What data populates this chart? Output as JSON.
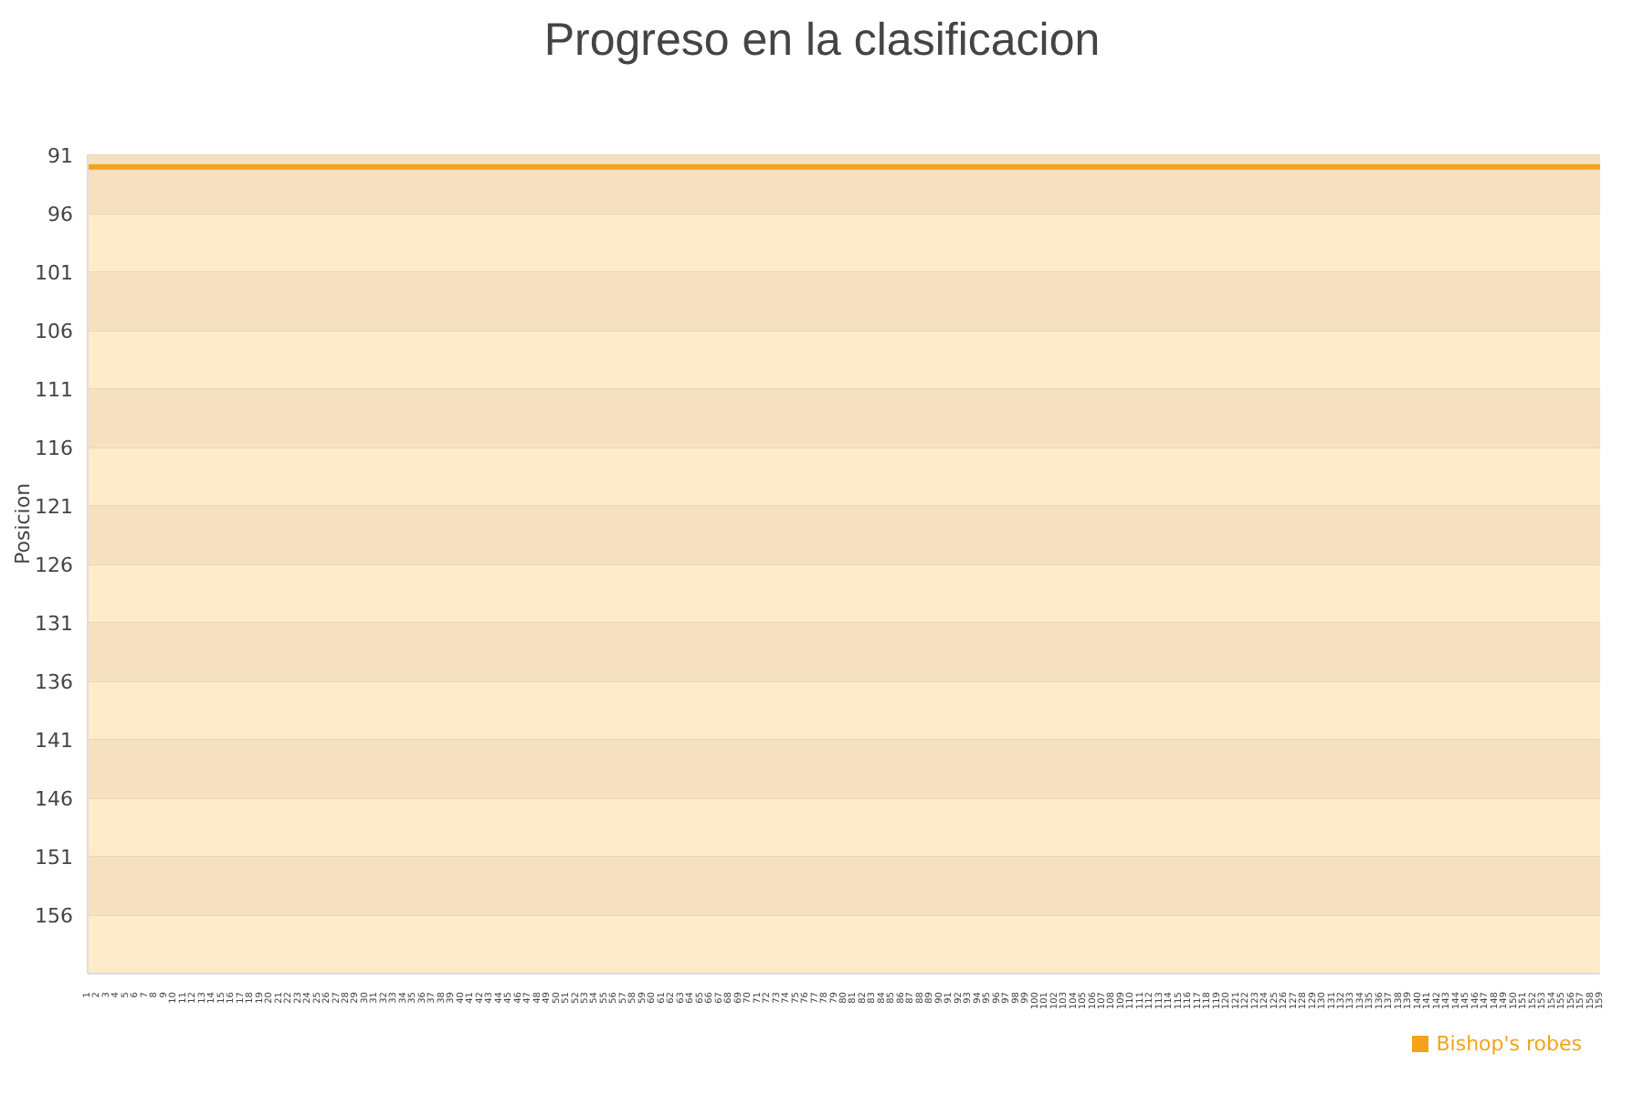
{
  "chart_data": {
    "type": "line",
    "title": "Progreso en la clasificacion",
    "ylabel": "Posicion",
    "categories": [
      "1",
      "2",
      "3",
      "4",
      "5",
      "6",
      "7",
      "8",
      "9",
      "10",
      "11",
      "12",
      "13",
      "14",
      "15",
      "16",
      "17",
      "18",
      "19",
      "20",
      "21",
      "22",
      "23",
      "24",
      "25",
      "26",
      "27",
      "28",
      "29",
      "30",
      "31",
      "32",
      "33",
      "34",
      "35",
      "36",
      "37",
      "38",
      "39",
      "40",
      "41",
      "42",
      "43",
      "44",
      "45",
      "46",
      "47",
      "48",
      "49",
      "50",
      "51",
      "52",
      "53",
      "54",
      "55",
      "56",
      "57",
      "58",
      "59",
      "60",
      "61",
      "62",
      "63",
      "64",
      "65",
      "66",
      "67",
      "68",
      "69",
      "70",
      "71",
      "72",
      "73",
      "74",
      "75",
      "76",
      "77",
      "78",
      "79",
      "80",
      "81",
      "82",
      "83",
      "84",
      "85",
      "86",
      "87",
      "88",
      "89",
      "90",
      "91",
      "92",
      "93",
      "94",
      "95",
      "96",
      "97",
      "98",
      "99",
      "100",
      "101",
      "102",
      "103",
      "104",
      "105",
      "106",
      "107",
      "108",
      "109",
      "110",
      "111",
      "112",
      "113",
      "114",
      "115",
      "116",
      "117",
      "118",
      "119",
      "120",
      "121",
      "122",
      "123",
      "124",
      "125",
      "126",
      "127",
      "128",
      "129",
      "130",
      "131",
      "132",
      "133",
      "134",
      "135",
      "136",
      "137",
      "138",
      "139",
      "140",
      "141",
      "142",
      "143",
      "144",
      "145",
      "146",
      "147",
      "148",
      "149",
      "150",
      "151",
      "152",
      "153",
      "154",
      "155",
      "156",
      "157",
      "158",
      "159"
    ],
    "series": [
      {
        "name": "Bishop's robes",
        "color": "#f5a31a",
        "values": [
          92,
          92,
          92,
          92,
          92,
          92,
          92,
          92,
          92,
          92,
          92,
          92,
          92,
          92,
          92,
          92,
          92,
          92,
          92,
          92,
          92,
          92,
          92,
          92,
          92,
          92,
          92,
          92,
          92,
          92,
          92,
          92,
          92,
          92,
          92,
          92,
          92,
          92,
          92,
          92,
          92,
          92,
          92,
          92,
          92,
          92,
          92,
          92,
          92,
          92,
          92,
          92,
          92,
          92,
          92,
          92,
          92,
          92,
          92,
          92,
          92,
          92,
          92,
          92,
          92,
          92,
          92,
          92,
          92,
          92,
          92,
          92,
          92,
          92,
          92,
          92,
          92,
          92,
          92,
          92,
          92,
          92,
          92,
          92,
          92,
          92,
          92,
          92,
          92,
          92,
          92,
          92,
          92,
          92,
          92,
          92,
          92,
          92,
          92,
          92,
          92,
          92,
          92,
          92,
          92,
          92,
          92,
          92,
          92,
          92,
          92,
          92,
          92,
          92,
          92,
          92,
          92,
          92,
          92,
          92,
          92,
          92,
          92,
          92,
          92,
          92,
          92,
          92,
          92,
          92,
          92,
          92,
          92,
          92,
          92,
          92,
          92,
          92,
          92,
          92,
          92,
          92,
          92,
          92,
          92,
          92,
          92,
          92,
          92,
          92,
          92,
          92,
          92,
          92,
          92,
          92,
          92,
          92,
          92
        ]
      }
    ],
    "ylim": [
      161,
      91
    ],
    "yticks": [
      91,
      96,
      101,
      106,
      111,
      116,
      121,
      126,
      131,
      136,
      141,
      146,
      151,
      156
    ],
    "bands": [
      {
        "axis": "y",
        "from": 91,
        "to": 96,
        "color": "#f5e1c0"
      },
      {
        "axis": "y",
        "from": 101,
        "to": 106,
        "color": "#f5e1c0"
      },
      {
        "axis": "y",
        "from": 111,
        "to": 116,
        "color": "#f5e1c0"
      },
      {
        "axis": "y",
        "from": 121,
        "to": 126,
        "color": "#f5e1c0"
      },
      {
        "axis": "y",
        "from": 131,
        "to": 136,
        "color": "#f5e1c0"
      },
      {
        "axis": "y",
        "from": 141,
        "to": 146,
        "color": "#f5e1c0"
      },
      {
        "axis": "y",
        "from": 151,
        "to": 156,
        "color": "#f5e1c0"
      }
    ],
    "grid": "y",
    "legend": "bottom right",
    "marker": "none",
    "line_style": "solid"
  }
}
